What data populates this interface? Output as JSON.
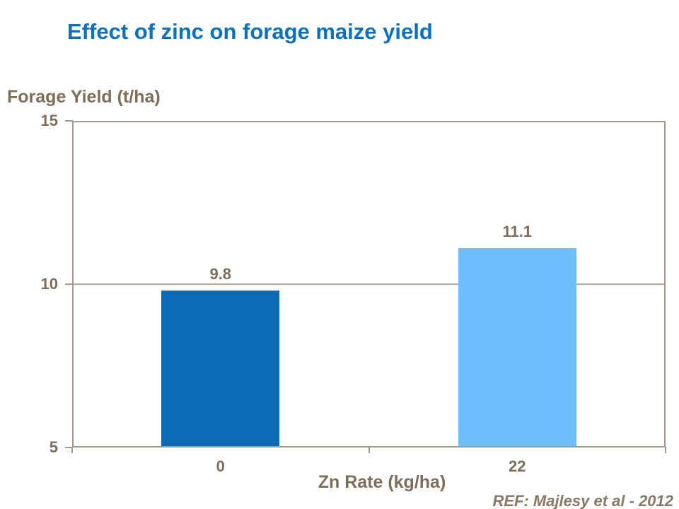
{
  "reference": "REF: Majlesy et al  - 2012",
  "chart_data": {
    "type": "bar",
    "title": "Effect of zinc on forage maize yield",
    "categories": [
      "0",
      "22"
    ],
    "values": [
      9.8,
      11.1
    ],
    "data_labels": [
      "9.8",
      "11.1"
    ],
    "xlabel": "Zn Rate (kg/ha)",
    "ylabel": "Forage Yield (t/ha)",
    "ylim": [
      5,
      15
    ],
    "yticks": [
      5,
      10,
      15
    ],
    "grid": "horizontal gridlines at interior yticks, plot framed on all sides",
    "legend": "none",
    "bar_colors": [
      "#0B6BB5",
      "#6CBFFB"
    ]
  },
  "colors": {
    "title": "#0C70BE",
    "axis_text": "#7D6E5A",
    "axis_line": "#A2988A",
    "gridline": "#AFA698",
    "reference_text": "#877868",
    "background": "#FFFFFF"
  }
}
